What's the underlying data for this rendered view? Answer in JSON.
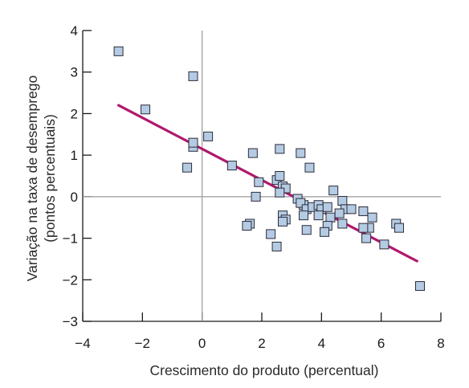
{
  "chart_data": {
    "type": "scatter",
    "xlabel": "Crescimento do produto (percentual)",
    "ylabel_line1": "Variação na taxa de desemprego",
    "ylabel_line2": "(pontos percentuais)",
    "xlim": [
      -4,
      8
    ],
    "ylim": [
      -3,
      4
    ],
    "xticks": [
      -4,
      -2,
      0,
      2,
      4,
      6,
      8
    ],
    "yticks": [
      -3,
      -2,
      -1,
      0,
      1,
      2,
      3,
      4
    ],
    "xtick_labels": [
      "−4",
      "−2",
      "0",
      "2",
      "4",
      "6",
      "8"
    ],
    "ytick_labels": [
      "−3",
      "−2",
      "−1",
      "0",
      "1",
      "2",
      "3",
      "4"
    ],
    "grid": false,
    "reference_lines": {
      "x": 0,
      "y": 0
    },
    "marker_fill": "#b4cbe3",
    "marker_edge": "#2b2b3a",
    "fit_color": "#b0186e",
    "points": [
      [
        -2.8,
        3.5
      ],
      [
        -1.9,
        2.1
      ],
      [
        -0.3,
        2.9
      ],
      [
        -0.5,
        0.7
      ],
      [
        -0.3,
        1.2
      ],
      [
        -0.3,
        1.3
      ],
      [
        0.2,
        1.45
      ],
      [
        1.0,
        0.75
      ],
      [
        1.7,
        1.05
      ],
      [
        2.6,
        1.15
      ],
      [
        3.3,
        1.05
      ],
      [
        3.6,
        0.7
      ],
      [
        1.9,
        0.35
      ],
      [
        1.8,
        0.0
      ],
      [
        2.5,
        0.4
      ],
      [
        2.6,
        0.5
      ],
      [
        2.7,
        0.25
      ],
      [
        2.8,
        0.2
      ],
      [
        2.6,
        0.1
      ],
      [
        3.2,
        -0.05
      ],
      [
        3.4,
        -0.2
      ],
      [
        3.3,
        -0.15
      ],
      [
        3.5,
        -0.3
      ],
      [
        3.7,
        -0.25
      ],
      [
        3.9,
        -0.2
      ],
      [
        4.0,
        -0.3
      ],
      [
        4.2,
        -0.25
      ],
      [
        4.4,
        0.15
      ],
      [
        4.7,
        -0.1
      ],
      [
        4.8,
        -0.3
      ],
      [
        5.0,
        -0.3
      ],
      [
        4.6,
        -0.4
      ],
      [
        4.3,
        -0.5
      ],
      [
        4.2,
        -0.7
      ],
      [
        3.4,
        -0.45
      ],
      [
        3.9,
        -0.45
      ],
      [
        2.7,
        -0.45
      ],
      [
        2.8,
        -0.55
      ],
      [
        2.7,
        -0.6
      ],
      [
        4.7,
        -0.65
      ],
      [
        5.4,
        -0.35
      ],
      [
        5.7,
        -0.5
      ],
      [
        5.6,
        -0.75
      ],
      [
        5.4,
        -0.75
      ],
      [
        5.5,
        -1.0
      ],
      [
        3.5,
        -0.8
      ],
      [
        4.1,
        -0.85
      ],
      [
        1.6,
        -0.65
      ],
      [
        1.5,
        -0.7
      ],
      [
        2.3,
        -0.9
      ],
      [
        2.5,
        -1.2
      ],
      [
        6.1,
        -1.15
      ],
      [
        6.5,
        -0.65
      ],
      [
        6.6,
        -0.75
      ],
      [
        7.3,
        -2.15
      ]
    ],
    "fit_line": {
      "x": [
        -2.8,
        7.2
      ],
      "y": [
        2.2,
        -1.55
      ]
    }
  }
}
